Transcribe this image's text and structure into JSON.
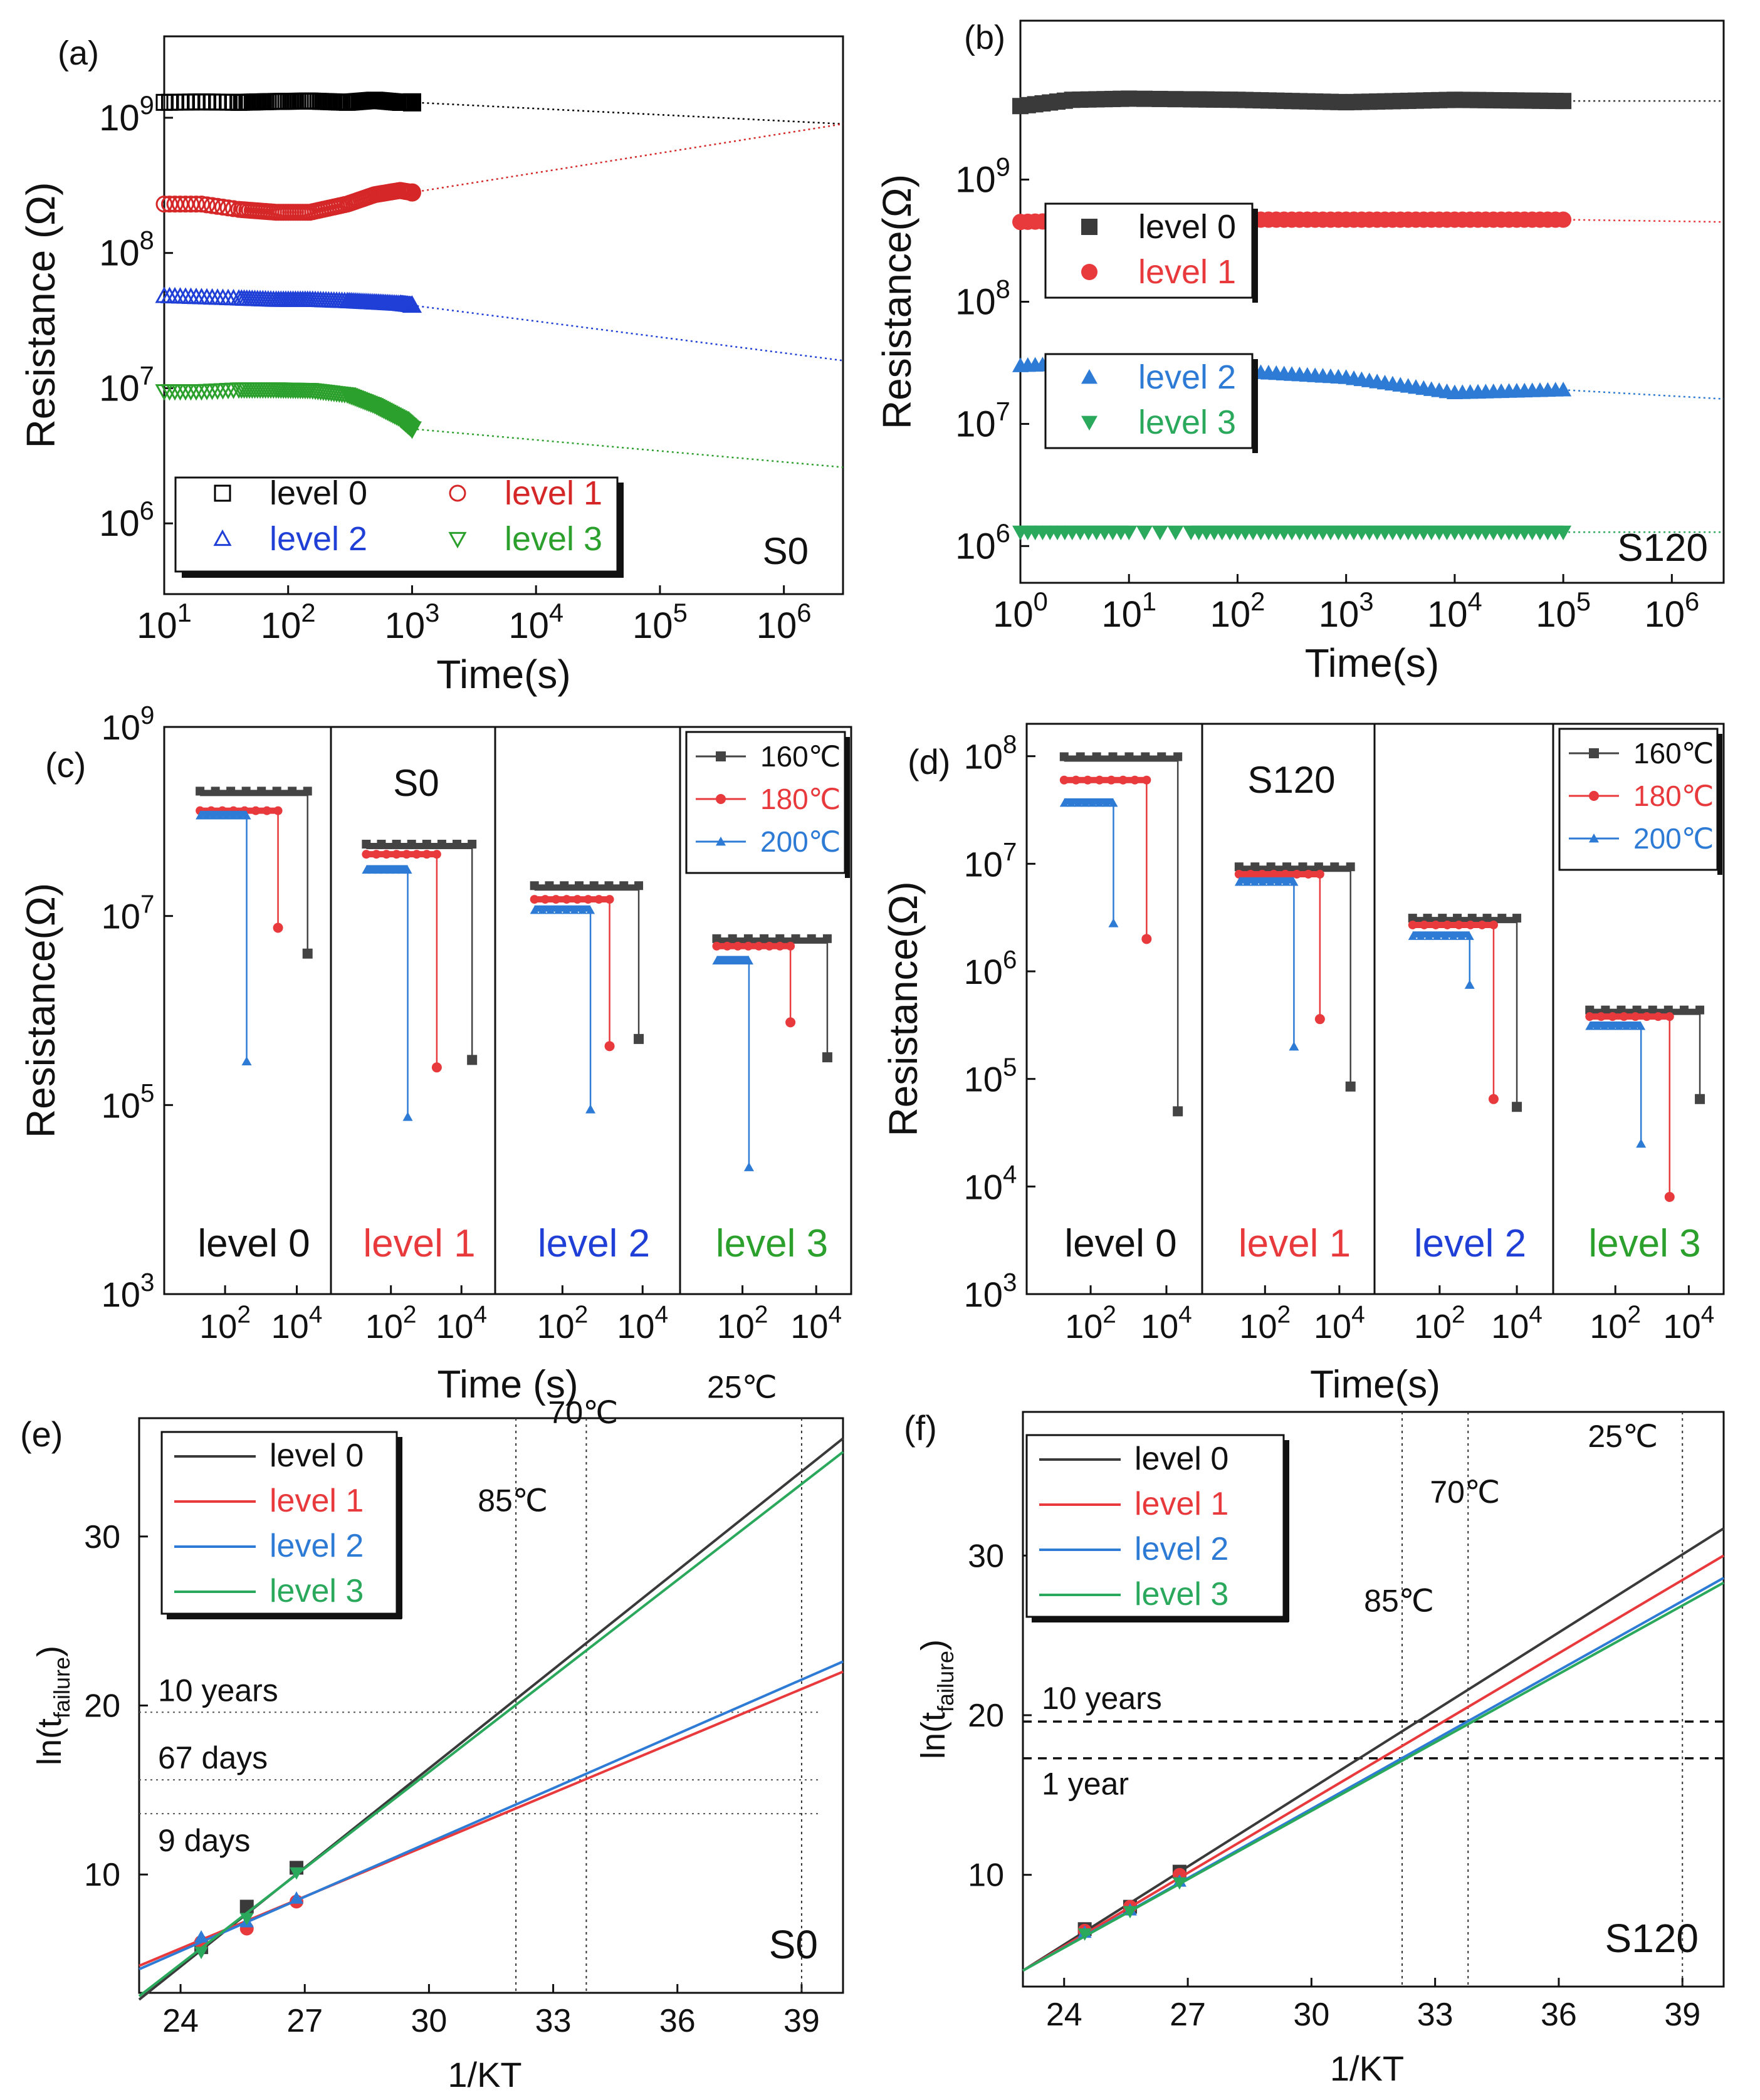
{
  "chart_data": [
    {
      "type": "scatter",
      "panel": "(a)",
      "sample": "S0",
      "xlabel": "Time(s)",
      "ylabel": "Resistance (Ω)",
      "xscale": "log",
      "yscale": "log",
      "xlim": [
        10,
        3000000
      ],
      "ylim": [
        300000,
        4000000000
      ],
      "xtick_labels": [
        "10^1",
        "10^2",
        "10^3",
        "10^4",
        "10^5",
        "10^6"
      ],
      "ytick_labels": [
        "10^6",
        "10^7",
        "10^8",
        "10^9"
      ],
      "legend": "bottom-left",
      "series": [
        {
          "name": "level 0",
          "color": "#000000",
          "marker": "open-square",
          "x": [
            10,
            20,
            40,
            80,
            150,
            300,
            500,
            800,
            1000
          ],
          "y": [
            1300000000,
            1310000000,
            1300000000,
            1320000000,
            1330000000,
            1300000000,
            1350000000,
            1300000000,
            1300000000
          ],
          "extrapolation": {
            "x": [
              1000,
              3000000
            ],
            "y": [
              1300000000,
              900000000
            ]
          }
        },
        {
          "name": "level 1",
          "color": "#d62728",
          "marker": "open-circle",
          "x": [
            10,
            20,
            40,
            80,
            150,
            300,
            500,
            800,
            1000
          ],
          "y": [
            230000000,
            230000000,
            210000000,
            200000000,
            200000000,
            230000000,
            270000000,
            290000000,
            280000000
          ],
          "extrapolation": {
            "x": [
              1000,
              3000000
            ],
            "y": [
              280000000,
              900000000
            ]
          }
        },
        {
          "name": "level 2",
          "color": "#1f3fd6",
          "marker": "open-triangle-up",
          "x": [
            10,
            20,
            40,
            80,
            150,
            300,
            500,
            800,
            1000
          ],
          "y": [
            48000000,
            47000000,
            46000000,
            45000000,
            45000000,
            44000000,
            43000000,
            42000000,
            41000000
          ],
          "extrapolation": {
            "x": [
              1000,
              3000000
            ],
            "y": [
              41000000,
              16000000
            ]
          }
        },
        {
          "name": "level 3",
          "color": "#2ca02c",
          "marker": "open-triangle-down",
          "x": [
            10,
            20,
            40,
            80,
            150,
            300,
            500,
            800,
            1000
          ],
          "y": [
            9500000,
            9500000,
            9800000,
            9800000,
            9700000,
            9000000,
            7500000,
            6000000,
            5000000
          ],
          "extrapolation": {
            "x": [
              1000,
              3000000
            ],
            "y": [
              5000000,
              2600000
            ]
          }
        }
      ]
    },
    {
      "type": "scatter",
      "panel": "(b)",
      "sample": "S120",
      "xlabel": "Time(s)",
      "ylabel": "Resistance(Ω)",
      "xscale": "log",
      "yscale": "log",
      "xlim": [
        1,
        3000000
      ],
      "ylim": [
        500000,
        20000000000
      ],
      "xtick_labels": [
        "10^0",
        "10^1",
        "10^2",
        "10^3",
        "10^4",
        "10^5",
        "10^6"
      ],
      "ytick_labels": [
        "10^6",
        "10^7",
        "10^8",
        "10^9"
      ],
      "legend": "left",
      "series": [
        {
          "name": "level 0",
          "color": "#3a3a3a",
          "marker": "filled-square",
          "x": [
            1,
            3,
            10,
            100,
            1000,
            10000,
            100000
          ],
          "y": [
            4000000000,
            4500000000,
            4600000000,
            4500000000,
            4300000000,
            4500000000,
            4400000000
          ],
          "extrapolation": {
            "x": [
              100000,
              3000000
            ],
            "y": [
              4400000000,
              4400000000
            ]
          }
        },
        {
          "name": "level 1",
          "color": "#e8393c",
          "marker": "filled-circle",
          "x": [
            1,
            3,
            10,
            100,
            1000,
            10000,
            100000
          ],
          "y": [
            450000000,
            460000000,
            460000000,
            470000000,
            470000000,
            470000000,
            470000000
          ],
          "extrapolation": {
            "x": [
              100000,
              3000000
            ],
            "y": [
              470000000,
              450000000
            ]
          }
        },
        {
          "name": "level 2",
          "color": "#2e7bd6",
          "marker": "filled-triangle-up",
          "x": [
            1,
            3,
            10,
            100,
            1000,
            10000,
            100000
          ],
          "y": [
            30000000,
            31000000,
            30000000,
            27000000,
            24000000,
            18000000,
            19000000
          ],
          "extrapolation": {
            "x": [
              100000,
              3000000
            ],
            "y": [
              19000000,
              16000000
            ]
          }
        },
        {
          "name": "level 3",
          "color": "#2aa85c",
          "marker": "filled-triangle-down",
          "x": [
            1,
            3,
            10,
            100,
            1000,
            10000,
            100000
          ],
          "y": [
            1300000,
            1300000,
            1300000,
            1300000,
            1300000,
            1300000,
            1300000
          ],
          "extrapolation": {
            "x": [
              100000,
              3000000
            ],
            "y": [
              1300000,
              1300000
            ]
          }
        }
      ]
    },
    {
      "type": "line",
      "panel": "(c)",
      "sample": "S0",
      "xlabel": "Time (s)",
      "ylabel": "Resistance(Ω)",
      "xscale": "log",
      "yscale": "log",
      "xlim": [
        3,
        60000
      ],
      "ylim": [
        1000,
        1000000000
      ],
      "xtick_labels": [
        "10^2",
        "10^4"
      ],
      "ytick_labels": [
        "10^3",
        "10^5",
        "10^7",
        "10^9"
      ],
      "legend_title": "",
      "temperatures": [
        "160℃",
        "180℃",
        "200℃"
      ],
      "temperature_colors": [
        "#444444",
        "#e8393c",
        "#2e7bd6"
      ],
      "subpanels": [
        {
          "label": "level 0",
          "color": "#111111",
          "curves": [
            {
              "T": "160℃",
              "stable": 200000000,
              "fail_t": 20000,
              "final": 4000000
            },
            {
              "T": "180℃",
              "stable": 130000000,
              "fail_t": 3000,
              "final": 7500000
            },
            {
              "T": "200℃",
              "stable": 120000000,
              "fail_t": 400,
              "final": 290000
            }
          ]
        },
        {
          "label": "level 1",
          "color": "#e8393c",
          "curves": [
            {
              "T": "160℃",
              "stable": 55000000,
              "fail_t": 20000,
              "final": 300000
            },
            {
              "T": "180℃",
              "stable": 45000000,
              "fail_t": 2000,
              "final": 250000
            },
            {
              "T": "200℃",
              "stable": 32000000,
              "fail_t": 300,
              "final": 75000
            }
          ]
        },
        {
          "label": "level 2",
          "color": "#1f3fd6",
          "curves": [
            {
              "T": "160℃",
              "stable": 20000000,
              "fail_t": 8000,
              "final": 500000
            },
            {
              "T": "180℃",
              "stable": 15000000,
              "fail_t": 1500,
              "final": 420000
            },
            {
              "T": "200℃",
              "stable": 12000000,
              "fail_t": 500,
              "final": 90000
            }
          ]
        },
        {
          "label": "level 3",
          "color": "#2ca02c",
          "curves": [
            {
              "T": "160℃",
              "stable": 5500000,
              "fail_t": 20000,
              "final": 320000
            },
            {
              "T": "180℃",
              "stable": 4800000,
              "fail_t": 2000,
              "final": 750000
            },
            {
              "T": "200℃",
              "stable": 3500000,
              "fail_t": 150,
              "final": 22000
            }
          ]
        }
      ]
    },
    {
      "type": "line",
      "panel": "(d)",
      "sample": "S120",
      "xlabel": "Time(s)",
      "ylabel": "Resistance(Ω)",
      "xscale": "log",
      "yscale": "log",
      "xlim": [
        3,
        60000
      ],
      "ylim": [
        1000,
        200000000
      ],
      "xtick_labels": [
        "10^2",
        "10^4"
      ],
      "ytick_labels": [
        "10^3",
        "10^4",
        "10^5",
        "10^6",
        "10^7",
        "10^8"
      ],
      "temperatures": [
        "160℃",
        "180℃",
        "200℃"
      ],
      "temperature_colors": [
        "#444444",
        "#e8393c",
        "#2e7bd6"
      ],
      "subpanels": [
        {
          "label": "level 0",
          "color": "#111111",
          "curves": [
            {
              "T": "160℃",
              "stable": 95000000,
              "fail_t": 20000,
              "final": 50000
            },
            {
              "T": "180℃",
              "stable": 60000000,
              "fail_t": 3000,
              "final": 2000000
            },
            {
              "T": "200℃",
              "stable": 38000000,
              "fail_t": 400,
              "final": 2800000
            }
          ]
        },
        {
          "label": "level 1",
          "color": "#e8393c",
          "curves": [
            {
              "T": "160℃",
              "stable": 9000000,
              "fail_t": 20000,
              "final": 85000
            },
            {
              "T": "180℃",
              "stable": 8000000,
              "fail_t": 3000,
              "final": 360000
            },
            {
              "T": "200℃",
              "stable": 7000000,
              "fail_t": 600,
              "final": 200000
            }
          ]
        },
        {
          "label": "level 2",
          "color": "#1f3fd6",
          "curves": [
            {
              "T": "160℃",
              "stable": 3000000,
              "fail_t": 10000,
              "final": 55000
            },
            {
              "T": "180℃",
              "stable": 2700000,
              "fail_t": 2500,
              "final": 65000
            },
            {
              "T": "200℃",
              "stable": 2200000,
              "fail_t": 600,
              "final": 750000
            }
          ]
        },
        {
          "label": "level 3",
          "color": "#2ca02c",
          "curves": [
            {
              "T": "160℃",
              "stable": 420000,
              "fail_t": 20000,
              "final": 65000
            },
            {
              "T": "180℃",
              "stable": 380000,
              "fail_t": 3000,
              "final": 8000
            },
            {
              "T": "200℃",
              "stable": 320000,
              "fail_t": 500,
              "final": 25000
            }
          ]
        }
      ]
    },
    {
      "type": "line",
      "panel": "(e)",
      "sample": "S0",
      "xlabel": "1/KT",
      "ylabel": "ln(t_failure)",
      "xlim": [
        23,
        40
      ],
      "ylim": [
        3,
        37
      ],
      "xtick_labels": [
        "24",
        "27",
        "30",
        "33",
        "36",
        "39"
      ],
      "ytick_labels": [
        "10",
        "20",
        "30"
      ],
      "legend": "top-left",
      "series": [
        {
          "name": "level 0",
          "color": "#3a3a3a",
          "x": [
            23,
            40
          ],
          "y": [
            2.6,
            35.8
          ],
          "points_x": [
            24.5,
            25.6,
            26.8
          ],
          "points_y": [
            5.7,
            8.1,
            10.4
          ]
        },
        {
          "name": "level 1",
          "color": "#e8393c",
          "x": [
            23,
            40
          ],
          "y": [
            4.6,
            22.0
          ],
          "points_x": [
            24.5,
            25.6,
            26.8
          ],
          "points_y": [
            6.0,
            6.8,
            8.4
          ]
        },
        {
          "name": "level 2",
          "color": "#2e7bd6",
          "x": [
            23,
            40
          ],
          "y": [
            4.4,
            22.6
          ],
          "points_x": [
            24.5,
            25.6,
            26.8
          ],
          "points_y": [
            6.3,
            7.2,
            8.6
          ]
        },
        {
          "name": "level 3",
          "color": "#2aa85c",
          "x": [
            23,
            40
          ],
          "y": [
            2.8,
            35.0
          ],
          "points_x": [
            24.5,
            25.6,
            26.8
          ],
          "points_y": [
            5.4,
            7.4,
            10.1
          ]
        }
      ],
      "vlines": [
        {
          "x": 32.1,
          "label": "85℃"
        },
        {
          "x": 33.8,
          "label": "70℃"
        },
        {
          "x": 39.0,
          "label": "25℃"
        }
      ],
      "hlines": [
        {
          "y": 19.6,
          "label": "10 years"
        },
        {
          "y": 15.6,
          "label": "67 days"
        },
        {
          "y": 13.6,
          "label": "9 days"
        }
      ]
    },
    {
      "type": "line",
      "panel": "(f)",
      "sample": "S120",
      "xlabel": "1/KT",
      "ylabel": "ln(t_failure)",
      "xlim": [
        23,
        40
      ],
      "ylim": [
        3,
        39
      ],
      "xtick_labels": [
        "24",
        "27",
        "30",
        "33",
        "36",
        "39"
      ],
      "ytick_labels": [
        "10",
        "20",
        "30"
      ],
      "legend": "top-left",
      "series": [
        {
          "name": "level 0",
          "color": "#3a3a3a",
          "x": [
            23,
            40
          ],
          "y": [
            4.0,
            31.7
          ],
          "points_x": [
            24.5,
            25.6,
            26.8
          ],
          "points_y": [
            6.6,
            8.0,
            10.2
          ]
        },
        {
          "name": "level 1",
          "color": "#e8393c",
          "x": [
            23,
            40
          ],
          "y": [
            4.0,
            30.0
          ],
          "points_x": [
            24.5,
            25.6,
            26.8
          ],
          "points_y": [
            6.5,
            8.0,
            10.0
          ]
        },
        {
          "name": "level 2",
          "color": "#2e7bd6",
          "x": [
            23,
            40
          ],
          "y": [
            4.0,
            28.6
          ],
          "points_x": [
            24.5,
            25.6,
            26.8
          ],
          "points_y": [
            6.4,
            7.8,
            9.6
          ]
        },
        {
          "name": "level 3",
          "color": "#2aa85c",
          "x": [
            23,
            40
          ],
          "y": [
            4.0,
            28.3
          ],
          "points_x": [
            24.5,
            25.6,
            26.8
          ],
          "points_y": [
            6.3,
            7.7,
            9.5
          ]
        }
      ],
      "vlines": [
        {
          "x": 32.2,
          "label": "85℃"
        },
        {
          "x": 33.8,
          "label": "70℃"
        },
        {
          "x": 39.0,
          "label": "25℃"
        }
      ],
      "hlines": [
        {
          "y": 19.6,
          "label": "10 years"
        },
        {
          "y": 17.3,
          "label": "1 year"
        }
      ]
    }
  ]
}
